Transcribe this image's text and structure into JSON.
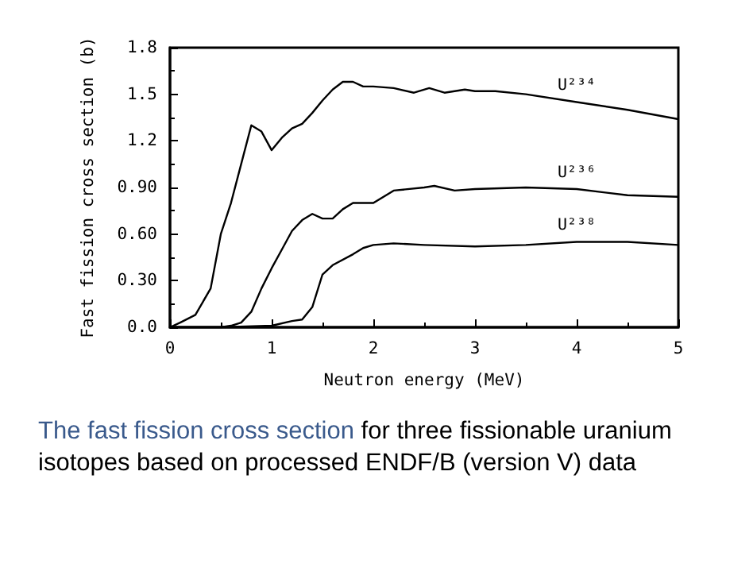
{
  "chart_data": {
    "type": "line",
    "xlabel": "Neutron energy (MeV)",
    "ylabel": "Fast fission cross section (b)",
    "annotations": [
      "The fast fission cross section",
      "for three fissionable uranium isotopes based on processed ENDF/B (version V) data"
    ],
    "xlim": [
      0,
      5
    ],
    "xticks": [
      0,
      1,
      2,
      3,
      4,
      5
    ],
    "ylim": [
      0,
      1.8
    ],
    "yticks": [
      {
        "value": 0,
        "label": "0.0"
      },
      {
        "value": 0.3,
        "label": "0.30"
      },
      {
        "value": 0.6,
        "label": "0.60"
      },
      {
        "value": 0.9,
        "label": "0.90"
      },
      {
        "value": 1.2,
        "label": "1.2"
      },
      {
        "value": 1.5,
        "label": "1.5"
      },
      {
        "value": 1.8,
        "label": "1.8"
      }
    ],
    "grid": false,
    "legend": false,
    "marker": "none",
    "line_style": "solid",
    "series": [
      {
        "name": "U²³⁴",
        "color": "#000000",
        "x": [
          0,
          0.1,
          0.25,
          0.4,
          0.5,
          0.6,
          0.7,
          0.8,
          0.9,
          1.0,
          1.1,
          1.2,
          1.3,
          1.4,
          1.5,
          1.6,
          1.7,
          1.8,
          1.9,
          2.0,
          2.2,
          2.4,
          2.55,
          2.7,
          2.9,
          3.0,
          3.2,
          3.5,
          4.0,
          4.5,
          5.0
        ],
        "values": [
          0,
          0.03,
          0.08,
          0.25,
          0.6,
          0.8,
          1.05,
          1.3,
          1.26,
          1.14,
          1.22,
          1.28,
          1.31,
          1.38,
          1.46,
          1.53,
          1.58,
          1.58,
          1.55,
          1.55,
          1.54,
          1.51,
          1.54,
          1.51,
          1.53,
          1.52,
          1.52,
          1.5,
          1.45,
          1.4,
          1.34
        ]
      },
      {
        "name": "U²³⁶",
        "color": "#000000",
        "x": [
          0,
          0.5,
          0.6,
          0.7,
          0.8,
          0.9,
          1.0,
          1.1,
          1.2,
          1.3,
          1.4,
          1.5,
          1.6,
          1.7,
          1.8,
          2.0,
          2.2,
          2.5,
          2.6,
          2.8,
          3.0,
          3.5,
          4.0,
          4.5,
          5.0
        ],
        "values": [
          0,
          0,
          0.01,
          0.03,
          0.1,
          0.25,
          0.38,
          0.5,
          0.62,
          0.69,
          0.73,
          0.7,
          0.7,
          0.76,
          0.8,
          0.8,
          0.88,
          0.9,
          0.91,
          0.88,
          0.89,
          0.9,
          0.89,
          0.85,
          0.84
        ]
      },
      {
        "name": "U²³⁸",
        "color": "#000000",
        "x": [
          0,
          0.5,
          1.0,
          1.2,
          1.3,
          1.4,
          1.5,
          1.6,
          1.8,
          1.9,
          2.0,
          2.2,
          2.5,
          3.0,
          3.5,
          4.0,
          4.5,
          5.0
        ],
        "values": [
          0,
          0,
          0.01,
          0.04,
          0.05,
          0.13,
          0.34,
          0.4,
          0.47,
          0.51,
          0.53,
          0.54,
          0.53,
          0.52,
          0.53,
          0.55,
          0.55,
          0.53
        ]
      }
    ]
  }
}
